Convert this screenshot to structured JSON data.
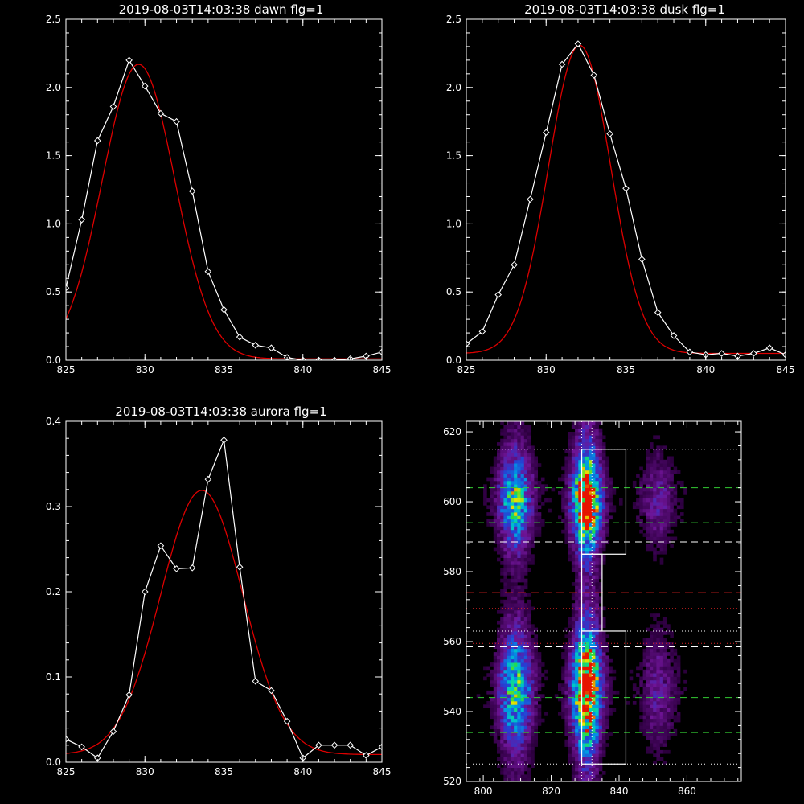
{
  "colors": {
    "background": "#000000",
    "axes": "#ffffff",
    "data_line": "#ffffff",
    "fit_line": "#dd0000",
    "guide_dotted": "#ffffff",
    "guide_green": "#33cc33",
    "guide_red": "#dd2222",
    "box": "#ffffff"
  },
  "chart_data": [
    {
      "id": "dawn",
      "type": "line",
      "title": "2019-08-03T14:03:38 dawn flg=1",
      "xlim": [
        825,
        845
      ],
      "ylim": [
        0,
        2.5
      ],
      "xticks": [
        "825",
        "830",
        "835",
        "840",
        "845"
      ],
      "yticks": [
        "0.0",
        "0.5",
        "1.0",
        "1.5",
        "2.0",
        "2.5"
      ],
      "series": [
        {
          "style": "white-diamond-line",
          "x": [
            825,
            826,
            827,
            828,
            829,
            830,
            831,
            832,
            833,
            834,
            835,
            836,
            837,
            838,
            839,
            840,
            841,
            842,
            843,
            844,
            845
          ],
          "y": [
            0.53,
            1.03,
            1.61,
            1.86,
            2.2,
            2.01,
            1.81,
            1.75,
            1.24,
            0.65,
            0.37,
            0.17,
            0.11,
            0.09,
            0.02,
            0.0,
            0.0,
            0.0,
            0.01,
            0.03,
            0.06
          ]
        },
        {
          "style": "red-gaussian-fit",
          "amplitude": 2.16,
          "center": 829.6,
          "sigma": 2.3,
          "offset": 0.01
        }
      ]
    },
    {
      "id": "dusk",
      "type": "line",
      "title": "2019-08-03T14:03:38 dusk flg=1",
      "xlim": [
        825,
        845
      ],
      "ylim": [
        0,
        2.5
      ],
      "xticks": [
        "825",
        "830",
        "835",
        "840",
        "845"
      ],
      "yticks": [
        "0.0",
        "0.5",
        "1.0",
        "1.5",
        "2.0",
        "2.5"
      ],
      "series": [
        {
          "style": "white-diamond-line",
          "x": [
            825,
            826,
            827,
            828,
            829,
            830,
            831,
            832,
            833,
            834,
            835,
            836,
            837,
            838,
            839,
            840,
            841,
            842,
            843,
            844,
            845
          ],
          "y": [
            0.12,
            0.21,
            0.48,
            0.7,
            1.18,
            1.67,
            2.17,
            2.32,
            2.09,
            1.66,
            1.26,
            0.74,
            0.35,
            0.18,
            0.06,
            0.04,
            0.05,
            0.03,
            0.05,
            0.09,
            0.04
          ]
        },
        {
          "style": "red-gaussian-fit",
          "amplitude": 2.26,
          "center": 832.1,
          "sigma": 1.95,
          "offset": 0.05
        }
      ]
    },
    {
      "id": "aurora",
      "type": "line",
      "title": "2019-08-03T14:03:38 aurora flg=1",
      "xlim": [
        825,
        845
      ],
      "ylim": [
        0,
        0.4
      ],
      "xticks": [
        "825",
        "830",
        "835",
        "840",
        "845"
      ],
      "yticks": [
        "0.0",
        "0.1",
        "0.2",
        "0.3",
        "0.4"
      ],
      "series": [
        {
          "style": "white-diamond-line",
          "x": [
            825,
            826,
            827,
            828,
            829,
            830,
            831,
            832,
            833,
            834,
            835,
            836,
            837,
            838,
            839,
            840,
            841,
            842,
            843,
            844,
            845
          ],
          "y": [
            0.027,
            0.018,
            0.005,
            0.036,
            0.079,
            0.2,
            0.254,
            0.227,
            0.228,
            0.332,
            0.378,
            0.229,
            0.095,
            0.084,
            0.048,
            0.005,
            0.02,
            0.02,
            0.02,
            0.008,
            0.018
          ]
        },
        {
          "style": "red-gaussian-fit",
          "amplitude": 0.31,
          "center": 833.6,
          "sigma": 2.6,
          "offset": 0.009
        }
      ]
    },
    {
      "id": "image",
      "type": "heatmap",
      "title": "",
      "xlim": [
        795,
        876
      ],
      "ylim": [
        520,
        623
      ],
      "xticks": [
        "800",
        "820",
        "840",
        "860"
      ],
      "yticks": [
        "520",
        "540",
        "560",
        "580",
        "600",
        "620"
      ],
      "emission_columns": [
        {
          "x": 809,
          "width": 3.5,
          "intensity": 0.6
        },
        {
          "x": 830,
          "width": 3.0,
          "intensity": 1.0
        },
        {
          "x": 851,
          "width": 3.5,
          "intensity": 0.22
        }
      ],
      "emission_bands": [
        {
          "y": 600,
          "width": 9.0
        },
        {
          "y": 546,
          "width": 11.0
        }
      ],
      "vertical_dotted_x": [
        829,
        832
      ],
      "horizontal_dotted_y": [
        615,
        584.5,
        563,
        525
      ],
      "white_dashed_y": [
        588.5,
        558.5
      ],
      "green_dashed_y": [
        604,
        594,
        544,
        534
      ],
      "red_dashed_y": [
        574,
        564.5
      ],
      "red_dotted_y": [
        569.5,
        559.5
      ],
      "boxes": [
        {
          "x": [
            829,
            842
          ],
          "y": [
            585,
            615
          ]
        },
        {
          "x": [
            829,
            835
          ],
          "y": [
            563,
            585
          ]
        },
        {
          "x": [
            829,
            842
          ],
          "y": [
            525,
            563
          ]
        }
      ]
    }
  ]
}
